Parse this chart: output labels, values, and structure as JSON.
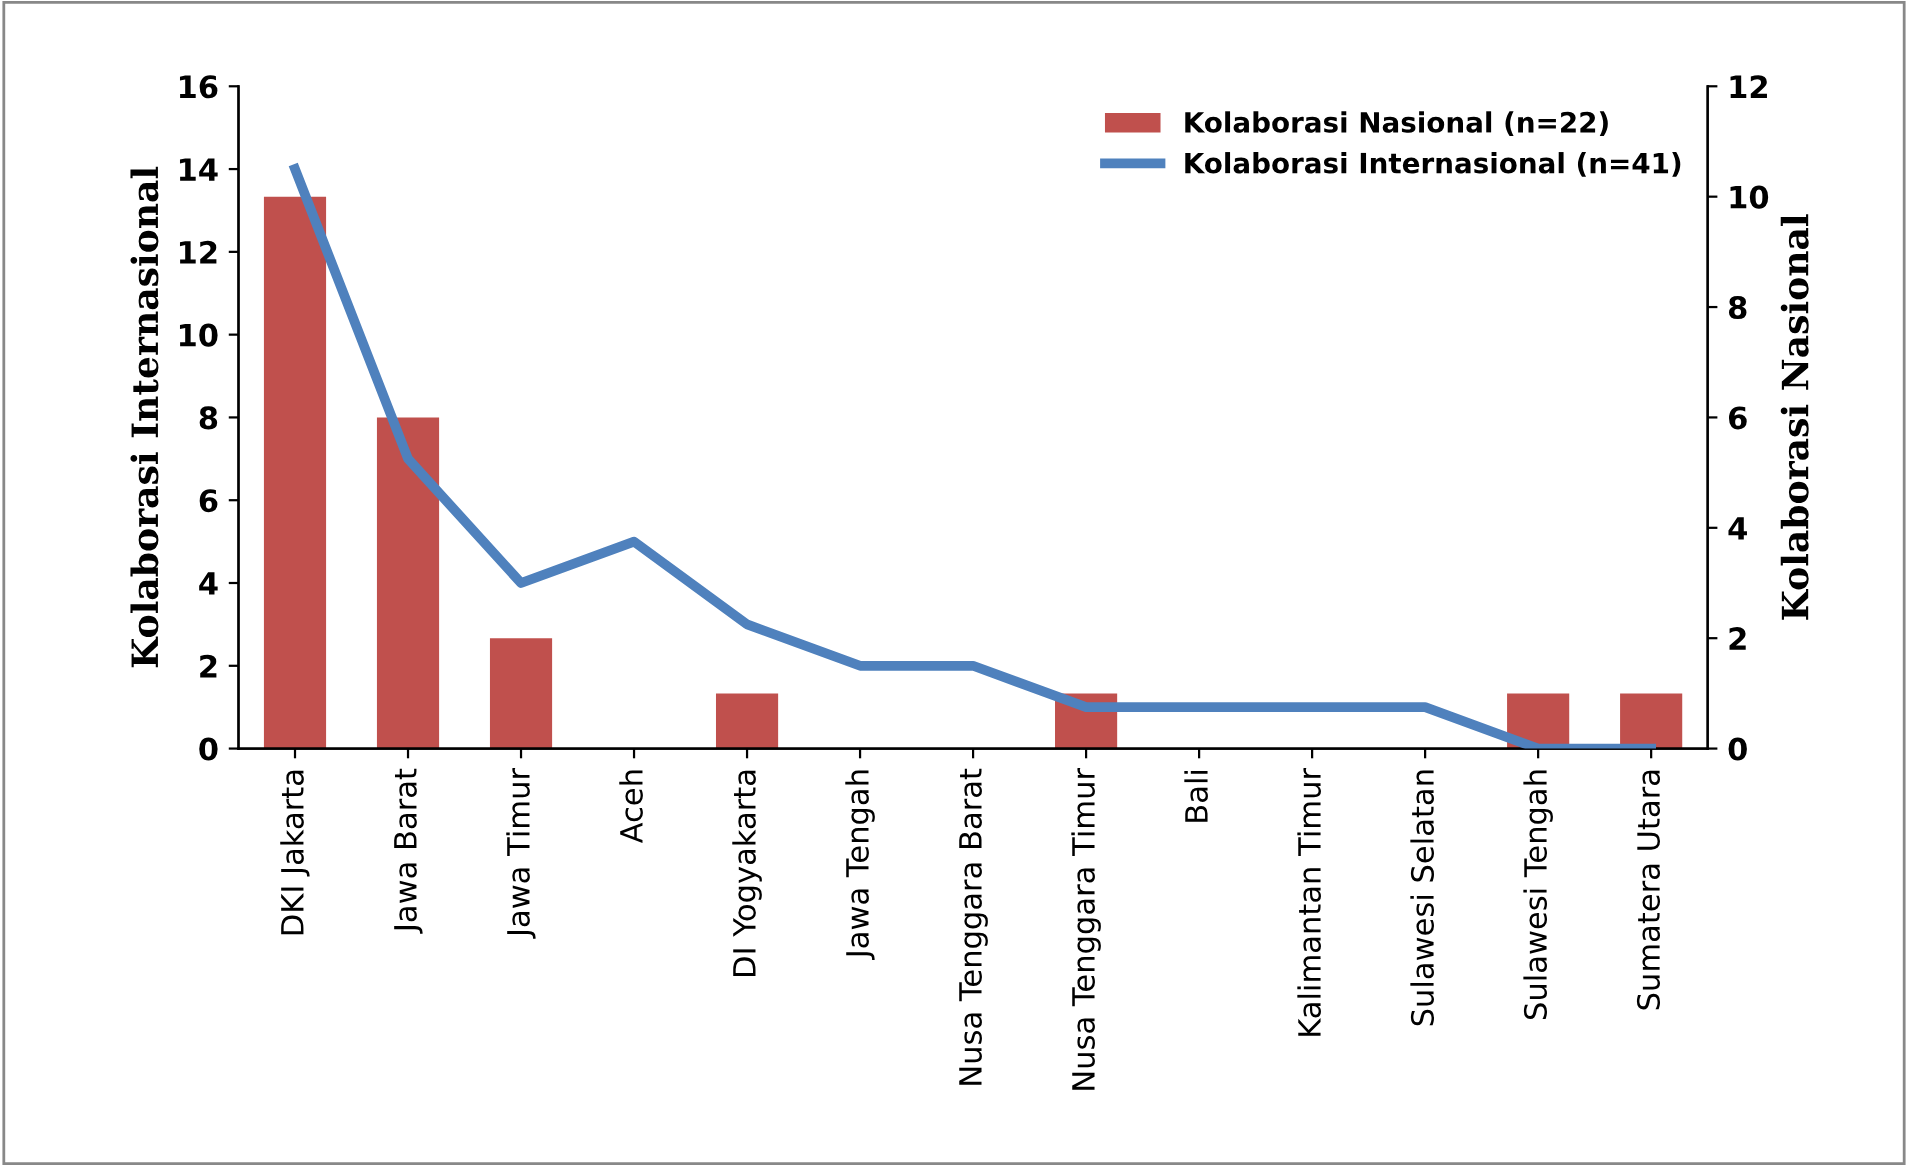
{
  "chart_data": {
    "type": "bar",
    "categories": [
      "DKI Jakarta",
      "Jawa Barat",
      "Jawa Timur",
      "Aceh",
      "DI Yogyakarta",
      "Jawa Tengah",
      "Nusa Tenggara Barat",
      "Nusa Tenggara Timur",
      "Bali",
      "Kalimantan Timur",
      "Sulawesi Selatan",
      "Sulawesi Tengah",
      "Sumatera Utara"
    ],
    "series": [
      {
        "name": "Kolaborasi Nasional (n=22)",
        "axis": "y2",
        "color": "#c0504d",
        "values": [
          10,
          6,
          2,
          0,
          1,
          0,
          0,
          1,
          0,
          0,
          0,
          1,
          1
        ]
      },
      {
        "name": "Kolaborasi Internasional (n=41)",
        "type": "line",
        "axis": "y",
        "color": "#4f81bd",
        "values": [
          14,
          7,
          4,
          5,
          3,
          2,
          2,
          1,
          1,
          1,
          1,
          0,
          0
        ]
      }
    ],
    "ylabel": "Kolaborasi Internasional",
    "y2label": "Kolaborasi Nasional",
    "ylim": [
      0,
      16
    ],
    "yticks": [
      0,
      2,
      4,
      6,
      8,
      10,
      12,
      14,
      16
    ],
    "y2lim": [
      0,
      12
    ],
    "y2ticks": [
      0,
      2,
      4,
      6,
      8,
      10,
      12
    ],
    "legend": "top right",
    "grid": false,
    "marker": "none",
    "line_style": "solid"
  }
}
